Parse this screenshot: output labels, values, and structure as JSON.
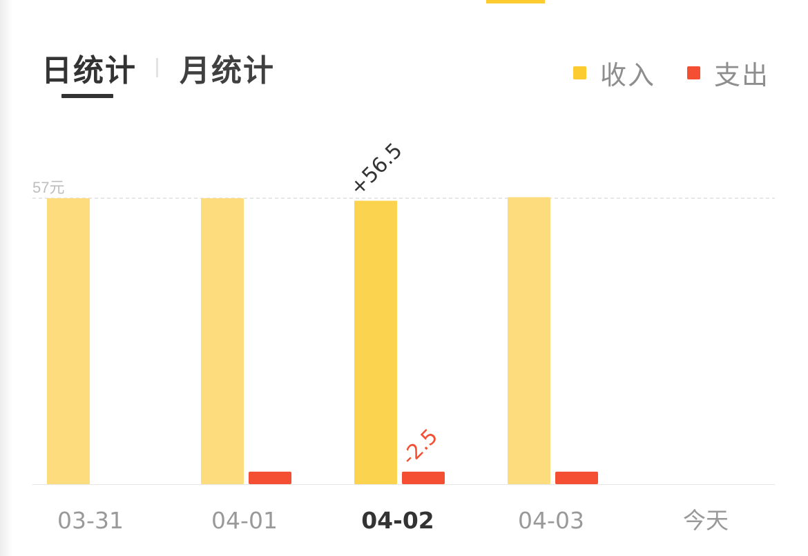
{
  "tabs": {
    "day": "日统计",
    "month": "月统计",
    "active": "day"
  },
  "legend": {
    "income": {
      "label": "收入",
      "color": "#fccb2f"
    },
    "expense": {
      "label": "支出",
      "color": "#f44f32"
    }
  },
  "chart_data": {
    "type": "bar",
    "categories": [
      "03-31",
      "04-01",
      "04-02",
      "04-03",
      "今天"
    ],
    "selected_category": "04-02",
    "series": [
      {
        "name": "收入",
        "values": [
          57,
          57,
          56.5,
          57.2,
          0
        ],
        "color": "#fccb2f"
      },
      {
        "name": "支出",
        "values": [
          0,
          2.5,
          2.5,
          2.5,
          0
        ],
        "color": "#f44f32"
      }
    ],
    "data_labels": {
      "income": "+56.5",
      "expense": "-2.5"
    },
    "reference_line": {
      "value": 57,
      "label": "57元"
    },
    "ylim": [
      0,
      57
    ],
    "grid": false,
    "legend_position": "top-right"
  }
}
